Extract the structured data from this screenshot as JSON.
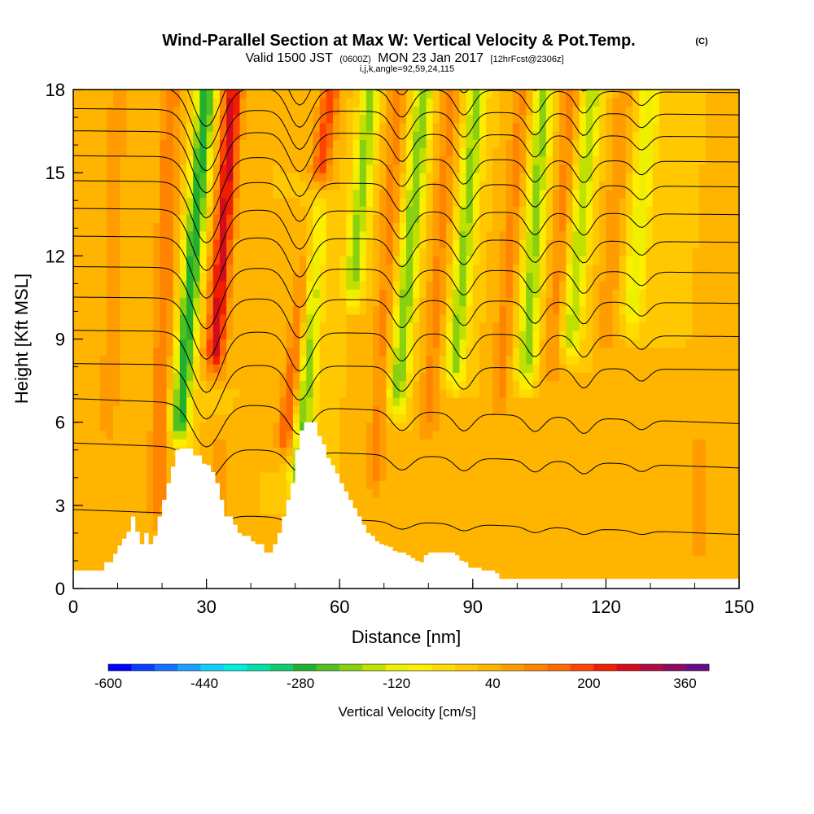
{
  "chart_data": {
    "type": "heatmap",
    "title": "Wind-Parallel Section at Max W: Vertical Velocity & Pot.Temp.",
    "copyright": "(C)",
    "subtitle": {
      "valid": "Valid 1500 JST",
      "utc": "(0600Z)",
      "date": "MON 23 Jan 2017",
      "forecast": "[12hrFcst@2306z]"
    },
    "section_info": "i,j,k,angle=92,59,24,115",
    "xlabel": "Distance [nm]",
    "ylabel": "Height [Kft MSL]",
    "xlim": [
      0,
      150
    ],
    "ylim": [
      0,
      18
    ],
    "x_ticks": [
      "0",
      "30",
      "60",
      "90",
      "120",
      "150"
    ],
    "x_tick_values": [
      0,
      30,
      60,
      90,
      120,
      150
    ],
    "y_ticks": [
      "0",
      "3",
      "6",
      "9",
      "12",
      "15",
      "18"
    ],
    "y_tick_values": [
      0,
      3,
      6,
      9,
      12,
      15,
      18
    ],
    "colorbar": {
      "label": "Vertical Velocity [cm/s]",
      "tick_labels": [
        "-600",
        "-440",
        "-280",
        "-120",
        "40",
        "200",
        "360"
      ],
      "tick_values": [
        -600,
        -440,
        -280,
        -120,
        40,
        200,
        360
      ],
      "min": -600,
      "max": 400,
      "step": 40,
      "colors": [
        "#0000ff",
        "#0a3cff",
        "#1470ff",
        "#1aa0ff",
        "#10d0ff",
        "#00eedd",
        "#00e0a8",
        "#10cc70",
        "#20b030",
        "#50c020",
        "#88d010",
        "#c0e000",
        "#eef000",
        "#ffee00",
        "#ffdc00",
        "#ffc800",
        "#ffb400",
        "#ff9c00",
        "#ff8400",
        "#ff6a00",
        "#ff4400",
        "#f01e00",
        "#d40a1e",
        "#b00a40",
        "#8c0a64",
        "#680a8c"
      ]
    },
    "terrain_kft": [
      [
        0,
        0.65
      ],
      [
        6,
        0.65
      ],
      [
        7,
        0.95
      ],
      [
        9,
        1.25
      ],
      [
        10,
        1.55
      ],
      [
        11,
        1.8
      ],
      [
        12,
        2.05
      ],
      [
        11,
        2.05
      ],
      [
        13,
        2.6
      ],
      [
        14,
        2.05
      ],
      [
        15,
        1.6
      ],
      [
        16,
        2.0
      ],
      [
        17,
        1.6
      ],
      [
        18,
        1.9
      ],
      [
        19,
        2.6
      ],
      [
        20,
        3.2
      ],
      [
        21,
        3.8
      ],
      [
        22,
        4.4
      ],
      [
        23,
        5.0
      ],
      [
        24,
        5.05
      ],
      [
        26,
        5.05
      ],
      [
        27,
        4.8
      ],
      [
        28,
        4.8
      ],
      [
        29,
        4.5
      ],
      [
        30,
        4.45
      ],
      [
        31,
        4.2
      ],
      [
        32,
        3.8
      ],
      [
        33,
        3.2
      ],
      [
        34,
        2.6
      ],
      [
        35,
        2.6
      ],
      [
        36,
        2.3
      ],
      [
        37,
        2.0
      ],
      [
        38,
        1.9
      ],
      [
        39,
        1.9
      ],
      [
        40,
        1.7
      ],
      [
        41,
        1.6
      ],
      [
        42,
        1.6
      ],
      [
        43,
        1.3
      ],
      [
        44,
        1.3
      ],
      [
        45,
        1.6
      ],
      [
        46,
        2.0
      ],
      [
        47,
        2.6
      ],
      [
        48,
        3.2
      ],
      [
        49,
        3.8
      ],
      [
        50,
        5.0
      ],
      [
        51,
        5.7
      ],
      [
        52,
        6.0
      ],
      [
        54,
        6.0
      ],
      [
        55,
        5.5
      ],
      [
        56,
        5.2
      ],
      [
        57,
        4.7
      ],
      [
        58,
        4.45
      ],
      [
        59,
        4.15
      ],
      [
        60,
        3.8
      ],
      [
        61,
        3.5
      ],
      [
        62,
        3.2
      ],
      [
        63,
        2.9
      ],
      [
        64,
        2.6
      ],
      [
        65,
        2.3
      ],
      [
        66,
        2.0
      ],
      [
        67,
        1.9
      ],
      [
        68,
        1.7
      ],
      [
        69,
        1.6
      ],
      [
        70,
        1.55
      ],
      [
        71,
        1.5
      ],
      [
        72,
        1.35
      ],
      [
        73,
        1.3
      ],
      [
        75,
        1.2
      ],
      [
        76,
        1.1
      ],
      [
        77,
        1.0
      ],
      [
        78,
        0.95
      ],
      [
        79,
        1.2
      ],
      [
        80,
        1.3
      ],
      [
        85,
        1.3
      ],
      [
        86,
        1.2
      ],
      [
        87,
        1.0
      ],
      [
        88,
        0.95
      ],
      [
        89,
        0.75
      ],
      [
        92,
        0.65
      ],
      [
        95,
        0.55
      ],
      [
        96,
        0.35
      ],
      [
        150,
        0.35
      ]
    ],
    "updrafts": [
      {
        "x0": 32,
        "x1": 36,
        "h0": 8.5,
        "h1": 18,
        "peak": 300
      },
      {
        "x0": 48,
        "x1": 58,
        "h0": 5.5,
        "h1": 18,
        "peak": 220
      },
      {
        "x0": 33,
        "x1": 33,
        "h0": 0,
        "h1": 5,
        "peak": 120
      },
      {
        "x0": 19,
        "x1": 22,
        "h0": 3,
        "h1": 18,
        "peak": 160
      },
      {
        "x0": 8,
        "x1": 10,
        "h0": 6,
        "h1": 18,
        "peak": 110
      },
      {
        "x0": 68,
        "x1": 73,
        "h0": 4,
        "h1": 18,
        "peak": 130
      },
      {
        "x0": 80,
        "x1": 85,
        "h0": 6,
        "h1": 18,
        "peak": 130
      },
      {
        "x0": 96,
        "x1": 101,
        "h0": 7,
        "h1": 18,
        "peak": 130
      },
      {
        "x0": 108,
        "x1": 112,
        "h0": 8,
        "h1": 18,
        "peak": 130
      },
      {
        "x0": 120,
        "x1": 124,
        "h0": 9,
        "h1": 18,
        "peak": 110
      },
      {
        "x0": 141,
        "x1": 141,
        "h0": 1.5,
        "h1": 5,
        "peak": 110
      }
    ],
    "downdrafts": [
      {
        "x0": 24,
        "x1": 30,
        "h0": 6,
        "h1": 18,
        "peak": -280
      },
      {
        "x0": 51,
        "x1": 55,
        "h0": 4,
        "h1": 14,
        "peak": -220
      },
      {
        "x0": 63,
        "x1": 67,
        "h0": 11,
        "h1": 18,
        "peak": -180
      },
      {
        "x0": 73,
        "x1": 79,
        "h0": 7,
        "h1": 18,
        "peak": -200
      },
      {
        "x0": 86,
        "x1": 91,
        "h0": 8,
        "h1": 18,
        "peak": -180
      },
      {
        "x0": 102,
        "x1": 106,
        "h0": 8,
        "h1": 18,
        "peak": -180
      },
      {
        "x0": 112,
        "x1": 117,
        "h0": 9,
        "h1": 18,
        "peak": -160
      },
      {
        "x0": 126,
        "x1": 130,
        "h0": 10,
        "h1": 18,
        "peak": -120
      }
    ],
    "isentrope_bases_kft": [
      2.4,
      4.8,
      6.4,
      8.0,
      9.2,
      10.4,
      11.5,
      12.6,
      13.6,
      14.6,
      15.5,
      16.4,
      17.2,
      18.0,
      18.8
    ]
  }
}
